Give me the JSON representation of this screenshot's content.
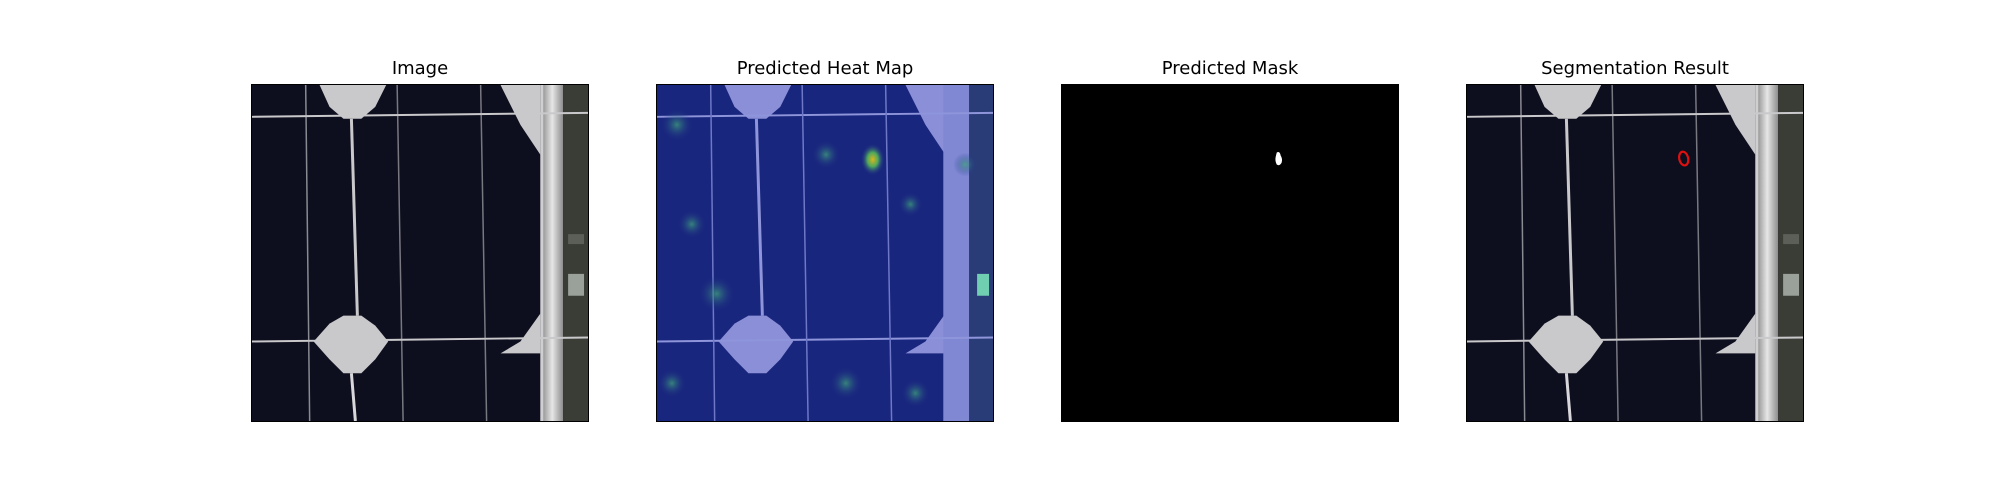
{
  "figure": {
    "panels": [
      {
        "title": "Image"
      },
      {
        "title": "Predicted Heat Map"
      },
      {
        "title": "Predicted Mask"
      },
      {
        "title": "Segmentation Result"
      }
    ]
  },
  "colors": {
    "cell_background": "#0b0c1a",
    "busbar": "#c9c9cc",
    "heatmap_blue": "#1e2c8c",
    "heatmap_hotspot": "#d7b61e",
    "mask_background": "#000000",
    "mask_defect": "#ffffff",
    "contour": "#e01010"
  }
}
